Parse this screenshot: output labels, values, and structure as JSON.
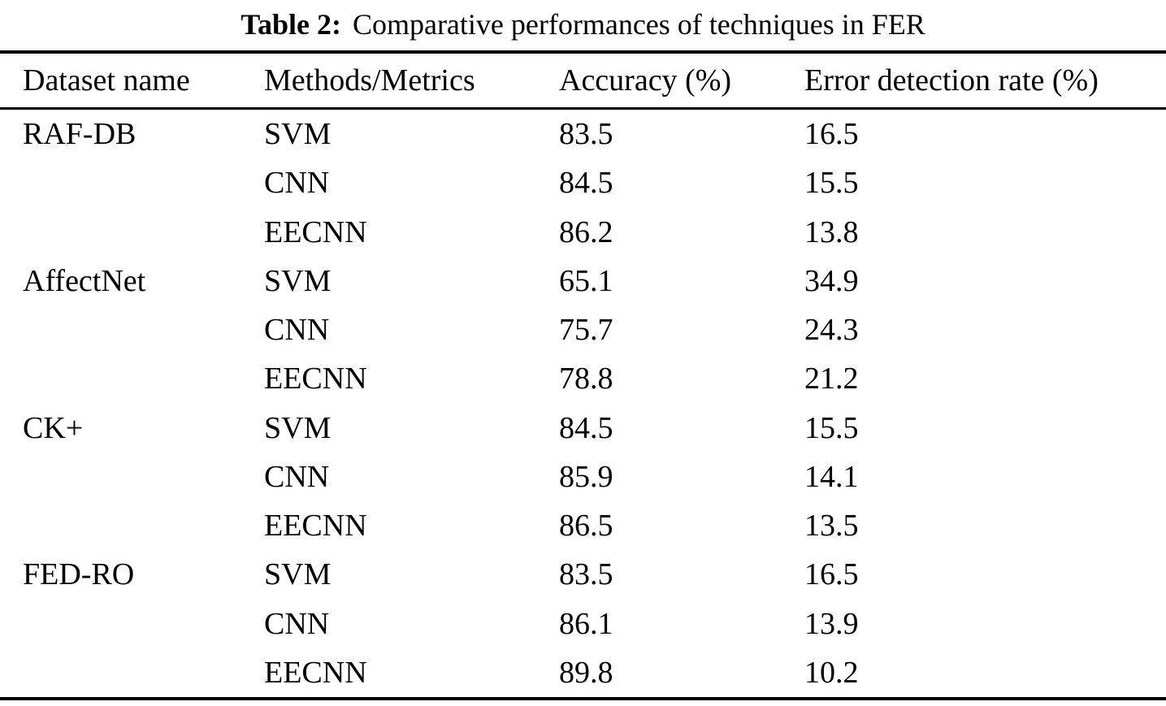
{
  "page": {
    "background": "#ffffff",
    "text_color": "#000000"
  },
  "caption": {
    "label": "Table 2:",
    "text": "Comparative performances of techniques in FER"
  },
  "chart_data": {
    "type": "table",
    "title": "Table 2: Comparative performances of techniques in FER",
    "columns": [
      "Dataset name",
      "Methods/Metrics",
      "Accuracy (%)",
      "Error detection rate (%)"
    ],
    "rows": [
      [
        "RAF-DB",
        "SVM",
        "83.5",
        "16.5"
      ],
      [
        "",
        "CNN",
        "84.5",
        "15.5"
      ],
      [
        "",
        "EECNN",
        "86.2",
        "13.8"
      ],
      [
        "AffectNet",
        "SVM",
        "65.1",
        "34.9"
      ],
      [
        "",
        "CNN",
        "75.7",
        "24.3"
      ],
      [
        "",
        "EECNN",
        "78.8",
        "21.2"
      ],
      [
        "CK+",
        "SVM",
        "84.5",
        "15.5"
      ],
      [
        "",
        "CNN",
        "85.9",
        "14.1"
      ],
      [
        "",
        "EECNN",
        "86.5",
        "13.5"
      ],
      [
        "FED-RO",
        "SVM",
        "83.5",
        "16.5"
      ],
      [
        "",
        "CNN",
        "86.1",
        "13.9"
      ],
      [
        "",
        "EECNN",
        "89.8",
        "10.2"
      ]
    ],
    "groups": [
      {
        "dataset": "RAF-DB",
        "methods": [
          "SVM",
          "CNN",
          "EECNN"
        ],
        "accuracy": [
          83.5,
          84.5,
          86.2
        ],
        "error_detection_rate": [
          16.5,
          15.5,
          13.8
        ]
      },
      {
        "dataset": "AffectNet",
        "methods": [
          "SVM",
          "CNN",
          "EECNN"
        ],
        "accuracy": [
          65.1,
          75.7,
          78.8
        ],
        "error_detection_rate": [
          34.9,
          24.3,
          21.2
        ]
      },
      {
        "dataset": "CK+",
        "methods": [
          "SVM",
          "CNN",
          "EECNN"
        ],
        "accuracy": [
          84.5,
          85.9,
          86.5
        ],
        "error_detection_rate": [
          15.5,
          14.1,
          13.5
        ]
      },
      {
        "dataset": "FED-RO",
        "methods": [
          "SVM",
          "CNN",
          "EECNN"
        ],
        "accuracy": [
          83.5,
          86.1,
          89.8
        ],
        "error_detection_rate": [
          16.5,
          13.9,
          10.2
        ]
      }
    ]
  }
}
